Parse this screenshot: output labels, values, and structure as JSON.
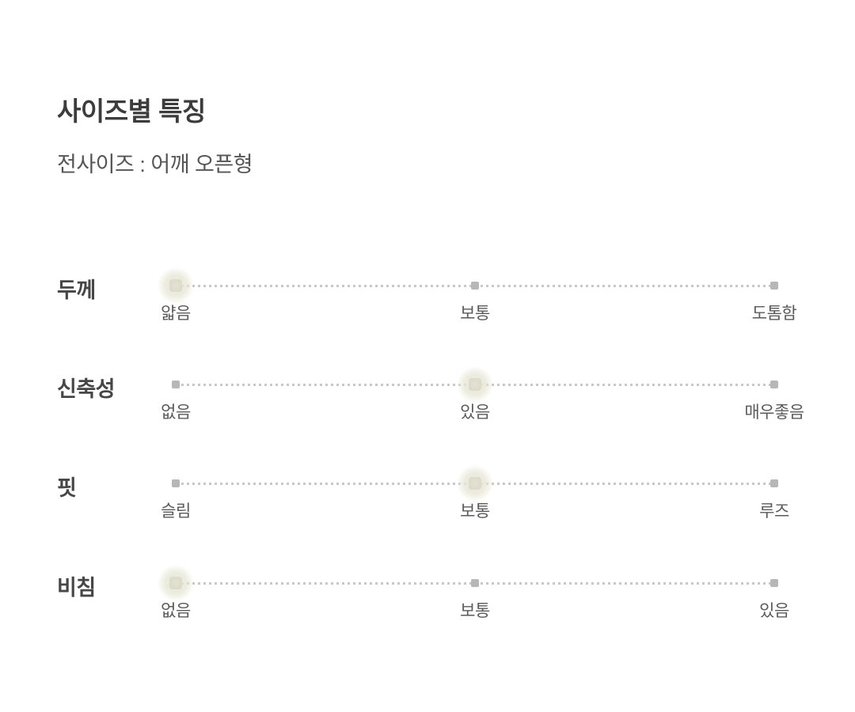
{
  "page": {
    "title": "사이즈별 특징",
    "subtitle": "전사이즈 : 어깨 오픈형"
  },
  "chart_data": {
    "type": "table",
    "title": "사이즈별 특징",
    "subtitle": "전사이즈 : 어깨 오픈형",
    "rows": [
      {
        "label": "두께",
        "scale": [
          "얇음",
          "보통",
          "도톰함"
        ],
        "selected_index": 0,
        "selected_value": "얇음"
      },
      {
        "label": "신축성",
        "scale": [
          "없음",
          "있음",
          "매우좋음"
        ],
        "selected_index": 1,
        "selected_value": "있음"
      },
      {
        "label": "핏",
        "scale": [
          "슬림",
          "보통",
          "루즈"
        ],
        "selected_index": 1,
        "selected_value": "보통"
      },
      {
        "label": "비침",
        "scale": [
          "없음",
          "보통",
          "있음"
        ],
        "selected_index": 0,
        "selected_value": "없음"
      }
    ]
  },
  "colors": {
    "background": "#ffffff",
    "title_text": "#3c3c3c",
    "subtitle_text": "#555555",
    "row_label_text": "#464646",
    "option_text": "#5a5a5a",
    "track_dot": "#c8c8c8",
    "marker": "#b7b7b7",
    "selected_marker": "#a6a6a3",
    "selected_glow": "#e7e6d4"
  }
}
